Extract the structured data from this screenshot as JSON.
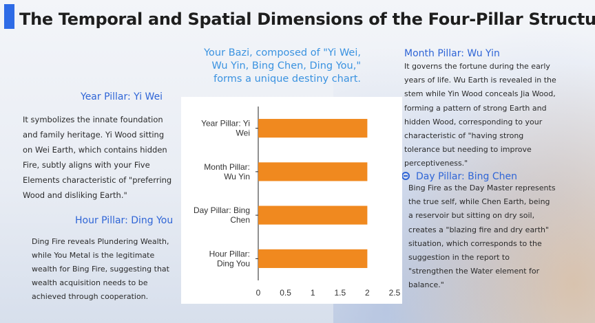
{
  "title": "The Temporal and Spatial Dimensions of the Four-Pillar Structure",
  "intro": "Your Bazi, composed of \"Yi Wei, Wu Yin, Bing Chen, Ding You,\" forms a unique destiny chart.",
  "year_pillar": {
    "heading": "Year Pillar: Yi Wei",
    "text": "It symbolizes the innate foundation and family heritage. Yi Wood sitting on Wei Earth, which contains hidden Fire, subtly aligns with your Five Elements characteristic of \"preferring Wood and disliking Earth.\""
  },
  "hour_pillar": {
    "heading": "Hour Pillar: Ding You",
    "text": "Ding Fire reveals Plundering Wealth, while You Metal is the legitimate wealth for Bing Fire, suggesting that wealth acquisition needs to be achieved through cooperation."
  },
  "month_pillar": {
    "heading": "Month Pillar: Wu Yin",
    "text": "It governs the fortune during the early years of life. Wu Earth is revealed in the stem while Yin Wood conceals Jia Wood, forming a pattern of strong Earth and hidden Wood, corresponding to your characteristic of \"having strong tolerance but needing to improve perceptiveness.\""
  },
  "day_pillar": {
    "heading": "Day Pillar: Bing Chen",
    "text": "Bing Fire as the Day Master represents the true self, while Chen Earth, being a reservoir but sitting on dry soil, creates a \"blazing fire and dry earth\" situation, which corresponds to the suggestion in the report to \"strengthen the Water element for balance.\""
  },
  "chart_data": {
    "type": "bar",
    "orientation": "horizontal",
    "categories": [
      [
        "Year Pillar: Yi",
        "Wei"
      ],
      [
        "Month Pillar:",
        "Wu Yin"
      ],
      [
        "Day Pillar: Bing",
        "Chen"
      ],
      [
        "Hour Pillar:",
        "Ding You"
      ]
    ],
    "values": [
      2,
      2,
      2,
      2
    ],
    "xlim": [
      0,
      2.5
    ],
    "xticks": [
      "0",
      "0.5",
      "1",
      "1.5",
      "2",
      "2.5"
    ],
    "bar_color": "#f0891f",
    "grid": false
  }
}
